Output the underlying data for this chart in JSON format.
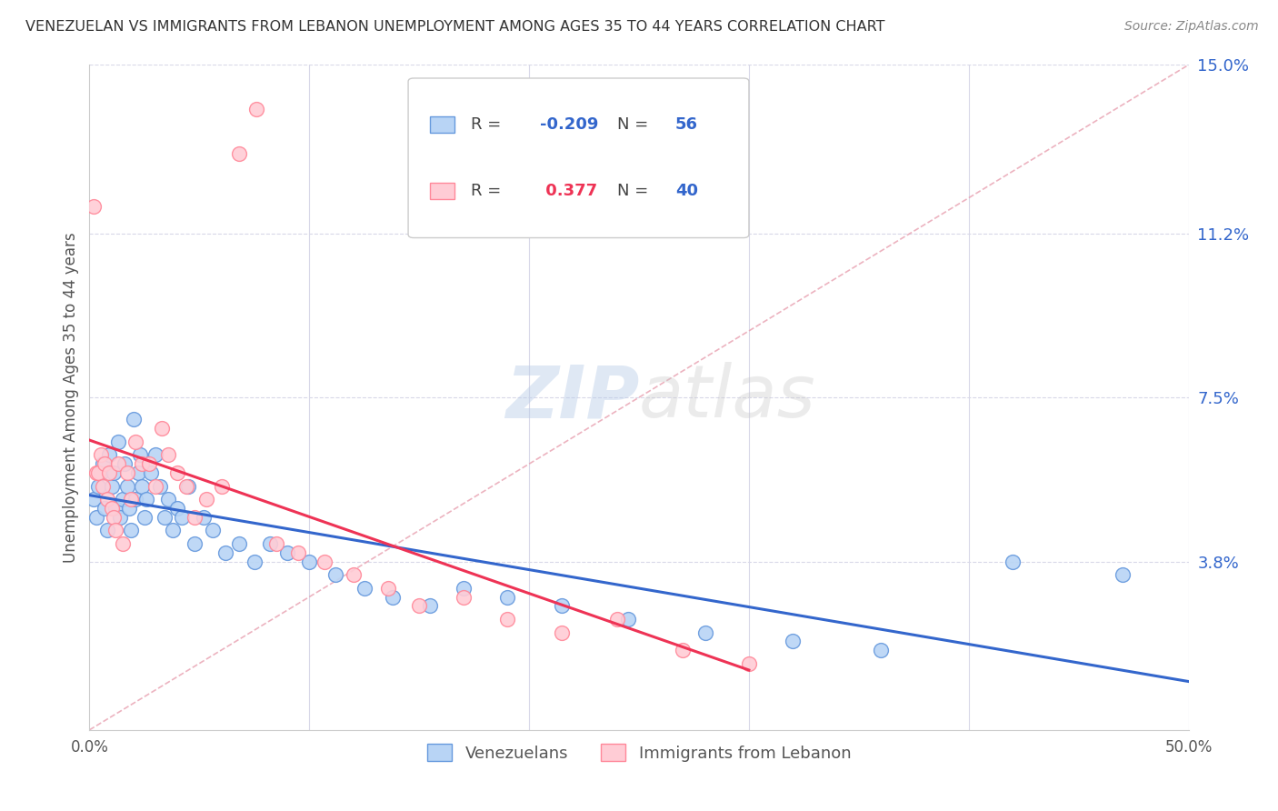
{
  "title": "VENEZUELAN VS IMMIGRANTS FROM LEBANON UNEMPLOYMENT AMONG AGES 35 TO 44 YEARS CORRELATION CHART",
  "source": "Source: ZipAtlas.com",
  "ylabel": "Unemployment Among Ages 35 to 44 years",
  "xlim": [
    0.0,
    0.5
  ],
  "ylim": [
    0.0,
    0.15
  ],
  "yticks_right": [
    0.038,
    0.075,
    0.112,
    0.15
  ],
  "ytick_labels_right": [
    "3.8%",
    "7.5%",
    "11.2%",
    "15.0%"
  ],
  "venezuelans_x": [
    0.002,
    0.003,
    0.004,
    0.005,
    0.006,
    0.007,
    0.008,
    0.009,
    0.01,
    0.011,
    0.012,
    0.013,
    0.014,
    0.015,
    0.016,
    0.017,
    0.018,
    0.019,
    0.02,
    0.021,
    0.022,
    0.023,
    0.024,
    0.025,
    0.026,
    0.028,
    0.03,
    0.032,
    0.034,
    0.036,
    0.038,
    0.04,
    0.042,
    0.045,
    0.048,
    0.052,
    0.056,
    0.062,
    0.068,
    0.075,
    0.082,
    0.09,
    0.1,
    0.112,
    0.125,
    0.138,
    0.155,
    0.17,
    0.19,
    0.215,
    0.245,
    0.28,
    0.32,
    0.36,
    0.42,
    0.47
  ],
  "venezuelans_y": [
    0.052,
    0.048,
    0.055,
    0.058,
    0.06,
    0.05,
    0.045,
    0.062,
    0.055,
    0.058,
    0.05,
    0.065,
    0.048,
    0.052,
    0.06,
    0.055,
    0.05,
    0.045,
    0.07,
    0.052,
    0.058,
    0.062,
    0.055,
    0.048,
    0.052,
    0.058,
    0.062,
    0.055,
    0.048,
    0.052,
    0.045,
    0.05,
    0.048,
    0.055,
    0.042,
    0.048,
    0.045,
    0.04,
    0.042,
    0.038,
    0.042,
    0.04,
    0.038,
    0.035,
    0.032,
    0.03,
    0.028,
    0.032,
    0.03,
    0.028,
    0.025,
    0.022,
    0.02,
    0.018,
    0.038,
    0.035
  ],
  "lebanon_x": [
    0.002,
    0.003,
    0.004,
    0.005,
    0.006,
    0.007,
    0.008,
    0.009,
    0.01,
    0.011,
    0.012,
    0.013,
    0.015,
    0.017,
    0.019,
    0.021,
    0.024,
    0.027,
    0.03,
    0.033,
    0.036,
    0.04,
    0.044,
    0.048,
    0.053,
    0.06,
    0.068,
    0.076,
    0.085,
    0.095,
    0.107,
    0.12,
    0.136,
    0.15,
    0.17,
    0.19,
    0.215,
    0.24,
    0.27,
    0.3
  ],
  "lebanon_y": [
    0.118,
    0.058,
    0.058,
    0.062,
    0.055,
    0.06,
    0.052,
    0.058,
    0.05,
    0.048,
    0.045,
    0.06,
    0.042,
    0.058,
    0.052,
    0.065,
    0.06,
    0.06,
    0.055,
    0.068,
    0.062,
    0.058,
    0.055,
    0.048,
    0.052,
    0.055,
    0.13,
    0.14,
    0.042,
    0.04,
    0.038,
    0.035,
    0.032,
    0.028,
    0.03,
    0.025,
    0.022,
    0.025,
    0.018,
    0.015
  ],
  "venezuelans_color": "#b8d4f5",
  "lebanon_color": "#ffccd5",
  "venezuelans_edge_color": "#6699dd",
  "lebanon_edge_color": "#ff8899",
  "trend_venezuelans_color": "#3366cc",
  "trend_lebanon_color": "#ee3355",
  "ref_line_color": "#e8a0b0",
  "ref_line_style": "--",
  "R_venezuelans": -0.209,
  "N_venezuelans": 56,
  "R_lebanon": 0.377,
  "N_lebanon": 40,
  "watermark_zip": "ZIP",
  "watermark_atlas": "atlas",
  "background_color": "#ffffff",
  "grid_color": "#d8d8e8",
  "title_color": "#333333",
  "axis_label_color": "#555555",
  "right_tick_color": "#3366cc",
  "legend_R_color_ven": "#3366cc",
  "legend_R_color_leb": "#ee3355",
  "legend_N_color": "#3366cc"
}
